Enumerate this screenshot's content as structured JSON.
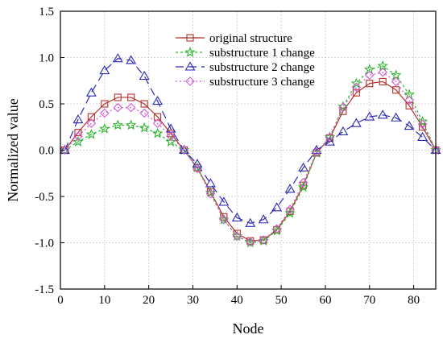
{
  "chart_data": {
    "type": "line",
    "title": "",
    "xlabel": "Node",
    "ylabel": "Normalized value",
    "xlim": [
      0,
      85
    ],
    "ylim": [
      -1.5,
      1.5
    ],
    "xticks": [
      0,
      10,
      20,
      30,
      40,
      50,
      60,
      70,
      80
    ],
    "yticks": [
      -1.5,
      -1.0,
      -0.5,
      0.0,
      0.5,
      1.0,
      1.5
    ],
    "ytick_labels": [
      "-1.5",
      "-1.0",
      "-0.5",
      "0.0",
      "0.5",
      "1.0",
      "1.5"
    ],
    "grid": true,
    "legend_position": "top-center",
    "x": [
      1,
      4,
      7,
      10,
      13,
      16,
      19,
      22,
      25,
      28,
      31,
      34,
      37,
      40,
      43,
      46,
      49,
      52,
      55,
      58,
      61,
      64,
      67,
      70,
      73,
      76,
      79,
      82,
      85
    ],
    "series": [
      {
        "name": "original structure",
        "color": "#b5322a",
        "dash": "",
        "marker": "square",
        "values": [
          0.0,
          0.19,
          0.36,
          0.5,
          0.57,
          0.57,
          0.5,
          0.36,
          0.18,
          0.0,
          -0.19,
          -0.45,
          -0.72,
          -0.9,
          -0.98,
          -0.97,
          -0.86,
          -0.66,
          -0.38,
          -0.03,
          0.13,
          0.42,
          0.62,
          0.72,
          0.74,
          0.65,
          0.48,
          0.25,
          0.0
        ]
      },
      {
        "name": "substructure 1 change",
        "color": "#2ab52a",
        "dash": "3,3",
        "marker": "star",
        "values": [
          0.0,
          0.09,
          0.17,
          0.23,
          0.27,
          0.27,
          0.24,
          0.18,
          0.09,
          0.0,
          -0.19,
          -0.46,
          -0.75,
          -0.93,
          -1.0,
          -0.98,
          -0.87,
          -0.68,
          -0.4,
          -0.03,
          0.14,
          0.47,
          0.72,
          0.87,
          0.91,
          0.81,
          0.6,
          0.31,
          0.0
        ]
      },
      {
        "name": "substructure 2 change",
        "color": "#2a2ab5",
        "dash": "10,6",
        "marker": "triangle",
        "values": [
          0.0,
          0.33,
          0.62,
          0.86,
          0.99,
          0.97,
          0.8,
          0.53,
          0.23,
          0.0,
          -0.15,
          -0.36,
          -0.56,
          -0.73,
          -0.79,
          -0.75,
          -0.62,
          -0.42,
          -0.19,
          0.0,
          0.09,
          0.2,
          0.29,
          0.36,
          0.38,
          0.35,
          0.26,
          0.14,
          0.0
        ]
      },
      {
        "name": "substructure 3 change",
        "color": "#d25ad2",
        "dash": "2,3",
        "marker": "diamond",
        "values": [
          0.0,
          0.15,
          0.29,
          0.4,
          0.46,
          0.46,
          0.4,
          0.29,
          0.15,
          0.0,
          -0.2,
          -0.47,
          -0.75,
          -0.93,
          -0.99,
          -0.97,
          -0.85,
          -0.64,
          -0.35,
          -0.02,
          0.14,
          0.46,
          0.68,
          0.81,
          0.84,
          0.74,
          0.54,
          0.28,
          0.0
        ]
      }
    ]
  }
}
